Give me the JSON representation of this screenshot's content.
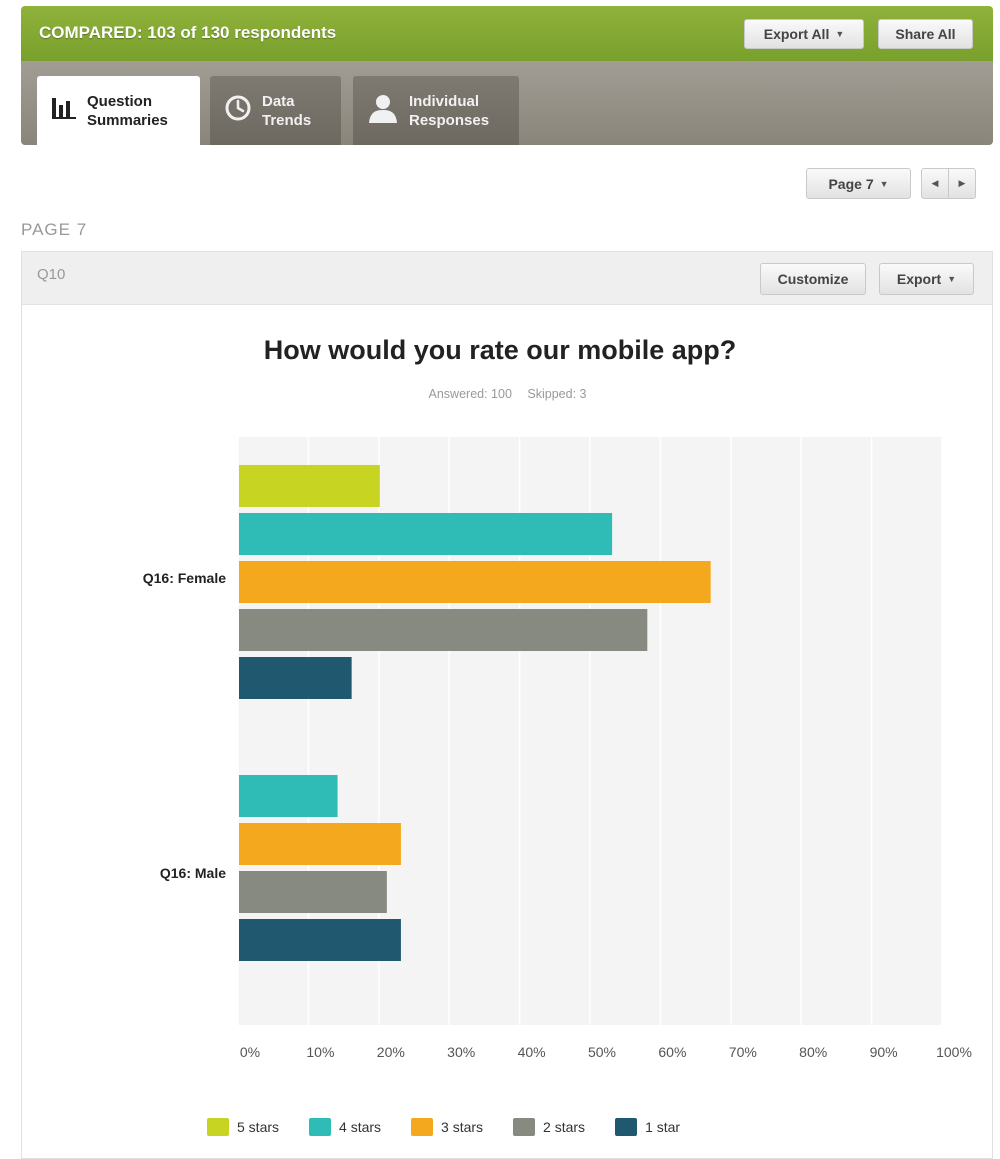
{
  "header": {
    "title": "COMPARED: 103 of 130 respondents",
    "export_all_label": "Export All",
    "share_all_label": "Share All"
  },
  "tabs": [
    {
      "label": "Question\nSummaries",
      "icon": "bar-chart-icon",
      "active": true
    },
    {
      "label": "Data\nTrends",
      "icon": "clock-icon",
      "active": false
    },
    {
      "label": "Individual\nResponses",
      "icon": "user-icon",
      "active": false
    }
  ],
  "pagination": {
    "page_select_label": "Page 7",
    "prev_icon": "chevron-left-icon",
    "next_icon": "chevron-right-icon",
    "page_heading": "PAGE 7"
  },
  "question": {
    "id": "Q10",
    "customize_label": "Customize",
    "export_label": "Export",
    "answered_text": "Answered: 100",
    "skipped_text": "Skipped: 3"
  },
  "colors": {
    "accent_green": "#8fb23b",
    "five_stars": "#c8d422",
    "four_stars": "#2fbcb6",
    "three_stars": "#f4a81d",
    "two_stars": "#878a81",
    "one_star": "#1f586f"
  },
  "chart_data": {
    "type": "bar",
    "orientation": "horizontal",
    "title": "How would you rate our mobile app?",
    "categories": [
      "Q16: Female",
      "Q16: Male"
    ],
    "series": [
      {
        "name": "5 stars",
        "values": [
          20,
          0
        ],
        "color": "#c8d422"
      },
      {
        "name": "4 stars",
        "values": [
          53,
          14
        ],
        "color": "#2fbcb6"
      },
      {
        "name": "3 stars",
        "values": [
          67,
          23
        ],
        "color": "#f4a81d"
      },
      {
        "name": "2 stars",
        "values": [
          58,
          21
        ],
        "color": "#878a81"
      },
      {
        "name": "1 star",
        "values": [
          16,
          23
        ],
        "color": "#1f586f"
      }
    ],
    "x_ticks": [
      "0%",
      "10%",
      "20%",
      "30%",
      "40%",
      "50%",
      "60%",
      "70%",
      "80%",
      "90%",
      "100%"
    ],
    "xlim": [
      0,
      100
    ],
    "x_unit": "%",
    "grid": true,
    "legend_position": "bottom"
  }
}
